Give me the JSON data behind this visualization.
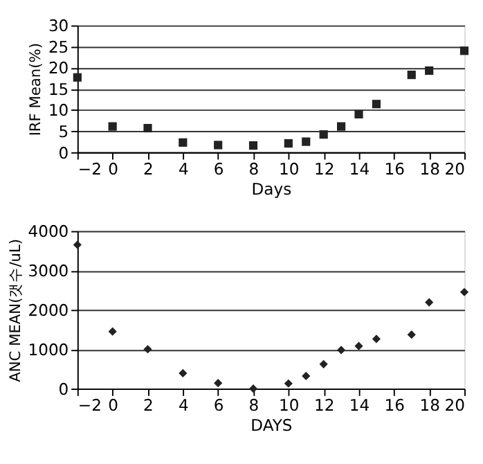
{
  "chart_data": [
    {
      "type": "scatter",
      "xlabel": "Days",
      "ylabel": "IRF Mean(%)",
      "x": [
        -2,
        0,
        2,
        4,
        6,
        8,
        10,
        11,
        12,
        13,
        14,
        15,
        17,
        18,
        20
      ],
      "series": [
        {
          "color": "#222222",
          "values": [
            17.7,
            6.1,
            5.7,
            2.3,
            1.7,
            1.6,
            2.1,
            2.5,
            4.2,
            6.1,
            9.0,
            11.4,
            18.3,
            19.3,
            24.0
          ]
        }
      ],
      "xlim": [
        -2,
        20
      ],
      "xticks": [
        -2,
        0,
        2,
        4,
        6,
        8,
        10,
        12,
        14,
        16,
        18,
        20
      ],
      "ylim": [
        0,
        30
      ],
      "yticks": [
        0,
        5,
        10,
        15,
        20,
        25,
        30
      ],
      "grid": "y",
      "marker": "square"
    },
    {
      "type": "scatter",
      "xlabel": "DAYS",
      "ylabel": "ANC MEAN(갯수/uL)",
      "x": [
        -2,
        0,
        2,
        4,
        6,
        8,
        10,
        11,
        12,
        13,
        14,
        15,
        17,
        18,
        20
      ],
      "series": [
        {
          "color": "#222222",
          "values": [
            3650,
            1450,
            1000,
            390,
            140,
            0,
            130,
            320,
            620,
            980,
            1080,
            1260,
            1370,
            2190,
            2450
          ]
        }
      ],
      "xlim": [
        -2,
        20
      ],
      "xticks": [
        -2,
        0,
        2,
        4,
        6,
        8,
        10,
        12,
        14,
        16,
        18,
        20
      ],
      "ylim": [
        0,
        4000
      ],
      "yticks": [
        0,
        1000,
        2000,
        3000,
        4000
      ],
      "grid": "y",
      "marker": "diamond"
    }
  ]
}
